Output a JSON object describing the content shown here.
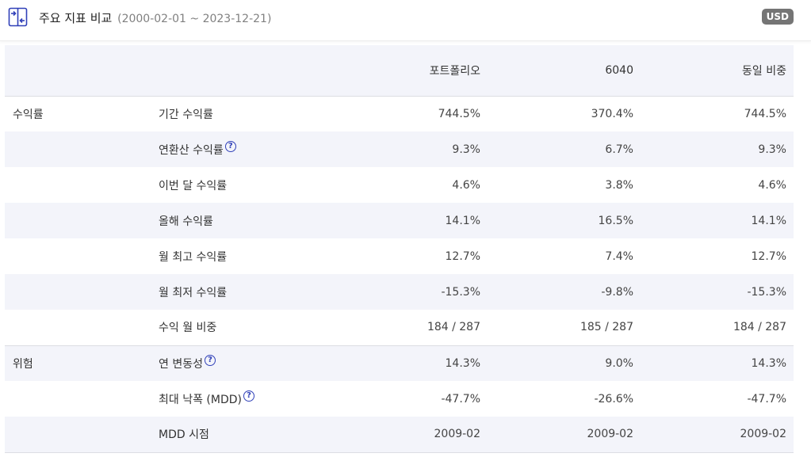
{
  "header": {
    "icon": "compare-arrows-icon",
    "title": "주요 지표 비교",
    "date_range": "(2000-02-01 ~ 2023-12-21)",
    "currency": "USD",
    "accent_color": "#3040b8"
  },
  "table": {
    "columns": [
      "포트폴리오",
      "6040",
      "동일 비중"
    ],
    "rows": [
      {
        "category": "수익률",
        "metric": "기간 수익률",
        "help": false,
        "values": [
          "744.5%",
          "370.4%",
          "744.5%"
        ]
      },
      {
        "category": "",
        "metric": "연환산 수익률",
        "help": true,
        "values": [
          "9.3%",
          "6.7%",
          "9.3%"
        ]
      },
      {
        "category": "",
        "metric": "이번 달 수익률",
        "help": false,
        "values": [
          "4.6%",
          "3.8%",
          "4.6%"
        ]
      },
      {
        "category": "",
        "metric": "올해 수익률",
        "help": false,
        "values": [
          "14.1%",
          "16.5%",
          "14.1%"
        ]
      },
      {
        "category": "",
        "metric": "월 최고 수익률",
        "help": false,
        "values": [
          "12.7%",
          "7.4%",
          "12.7%"
        ]
      },
      {
        "category": "",
        "metric": "월 최저 수익률",
        "help": false,
        "values": [
          "-15.3%",
          "-9.8%",
          "-15.3%"
        ]
      },
      {
        "category": "",
        "metric": "수익 월 비중",
        "help": false,
        "values": [
          "184 / 287",
          "185 / 287",
          "184 / 287"
        ]
      },
      {
        "category": "위험",
        "metric": "연 변동성",
        "help": true,
        "values": [
          "14.3%",
          "9.0%",
          "14.3%"
        ]
      },
      {
        "category": "",
        "metric": "최대 낙폭 (MDD)",
        "help": true,
        "values": [
          "-47.7%",
          "-26.6%",
          "-47.7%"
        ]
      },
      {
        "category": "",
        "metric": "MDD 시점",
        "help": false,
        "values": [
          "2009-02",
          "2009-02",
          "2009-02"
        ]
      }
    ]
  }
}
